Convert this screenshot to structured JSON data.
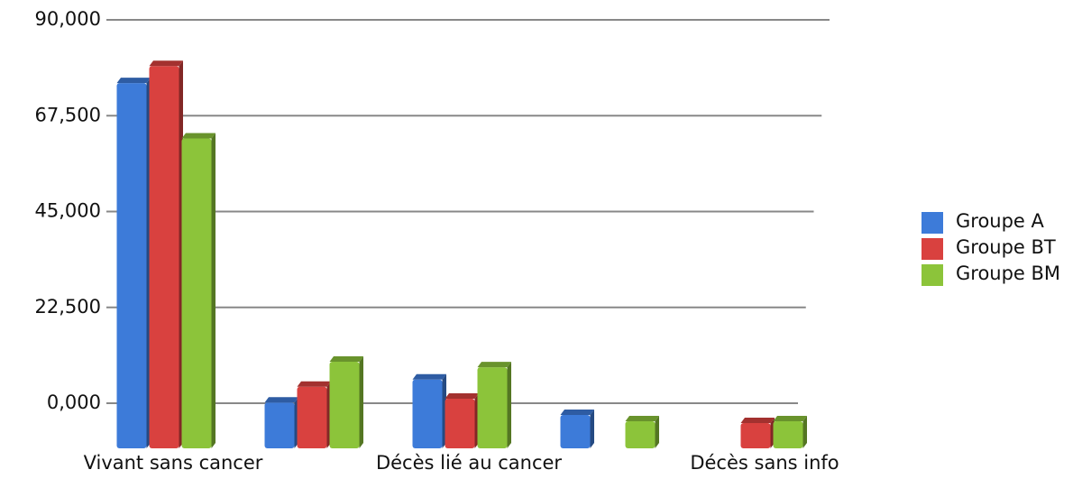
{
  "chart_data": {
    "type": "bar3d",
    "categories": [
      "Vivant sans cancer",
      null,
      "Décès lié au cancer",
      null,
      "Décès sans info"
    ],
    "series": [
      {
        "name": "Groupe A",
        "color": "#3d7bd9",
        "values": [
          76000,
          1000,
          6400,
          -1900,
          null
        ]
      },
      {
        "name": "Groupe BT",
        "color": "#d9413f",
        "values": [
          80000,
          4700,
          1900,
          null,
          -3800
        ]
      },
      {
        "name": "Groupe BM",
        "color": "#8cc43a",
        "values": [
          63000,
          10600,
          9300,
          -3400,
          -3400
        ]
      }
    ],
    "ylim": [
      -10600,
      90000
    ],
    "yticks": [
      {
        "value": 0,
        "label": "0,000"
      },
      {
        "value": 22500,
        "label": "22,500"
      },
      {
        "value": 45000,
        "label": "45,000"
      },
      {
        "value": 67500,
        "label": "67,500"
      },
      {
        "value": 90000,
        "label": "90,000"
      }
    ],
    "grid": true,
    "legend": "right"
  }
}
